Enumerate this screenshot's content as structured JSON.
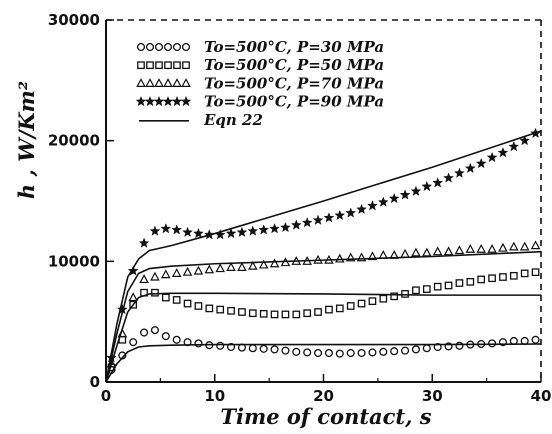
{
  "chart_data": {
    "type": "scatter",
    "title": "",
    "xlabel": "Time of contact, s",
    "ylabel": "h ,  W/Km²",
    "xlim": [
      0,
      40
    ],
    "ylim": [
      0,
      30000
    ],
    "xticks": [
      0,
      10,
      20,
      30,
      40
    ],
    "yticks": [
      0,
      10000,
      20000,
      30000
    ],
    "grid": false,
    "legend_position": "top-left",
    "series": [
      {
        "name": "To=500°C,  P=30 MPa",
        "marker": "circle",
        "x": [
          0.5,
          1.5,
          2.5,
          3.5,
          4.5,
          5.5,
          6.5,
          7.5,
          8.5,
          9.5,
          10.5,
          11.5,
          12.5,
          13.5,
          14.5,
          15.5,
          16.5,
          17.5,
          18.5,
          19.5,
          20.5,
          21.5,
          22.5,
          23.5,
          24.5,
          25.5,
          26.5,
          27.5,
          28.5,
          29.5,
          30.5,
          31.5,
          32.5,
          33.5,
          34.5,
          35.5,
          36.5,
          37.5,
          38.5,
          39.5
        ],
        "y": [
          1000,
          2200,
          3300,
          4100,
          4300,
          3800,
          3500,
          3300,
          3200,
          3050,
          3000,
          2900,
          2850,
          2800,
          2750,
          2700,
          2600,
          2500,
          2450,
          2400,
          2400,
          2350,
          2400,
          2400,
          2450,
          2500,
          2550,
          2600,
          2700,
          2800,
          2900,
          2950,
          3000,
          3100,
          3150,
          3200,
          3300,
          3400,
          3400,
          3500
        ]
      },
      {
        "name": "To=500°C,  P=50 MPa",
        "marker": "square",
        "x": [
          0.5,
          1.5,
          2.5,
          3.5,
          4.5,
          5.5,
          6.5,
          7.5,
          8.5,
          9.5,
          10.5,
          11.5,
          12.5,
          13.5,
          14.5,
          15.5,
          16.5,
          17.5,
          18.5,
          19.5,
          20.5,
          21.5,
          22.5,
          23.5,
          24.5,
          25.5,
          26.5,
          27.5,
          28.5,
          29.5,
          30.5,
          31.5,
          32.5,
          33.5,
          34.5,
          35.5,
          36.5,
          37.5,
          38.5,
          39.5
        ],
        "y": [
          1200,
          3500,
          6400,
          7400,
          7400,
          7000,
          6800,
          6500,
          6300,
          6100,
          6000,
          5900,
          5800,
          5700,
          5650,
          5600,
          5600,
          5600,
          5700,
          5800,
          6000,
          6100,
          6300,
          6500,
          6700,
          6900,
          7100,
          7300,
          7600,
          7700,
          7900,
          8000,
          8200,
          8300,
          8500,
          8600,
          8700,
          8800,
          9000,
          9100
        ]
      },
      {
        "name": "To=500°C,  P=70 MPa",
        "marker": "triangle",
        "x": [
          0.5,
          1.5,
          2.5,
          3.5,
          4.5,
          5.5,
          6.5,
          7.5,
          8.5,
          9.5,
          10.5,
          11.5,
          12.5,
          13.5,
          14.5,
          15.5,
          16.5,
          17.5,
          18.5,
          19.5,
          20.5,
          21.5,
          22.5,
          23.5,
          24.5,
          25.5,
          26.5,
          27.5,
          28.5,
          29.5,
          30.5,
          31.5,
          32.5,
          33.5,
          34.5,
          35.5,
          36.5,
          37.5,
          38.5,
          39.5
        ],
        "y": [
          1500,
          4000,
          7000,
          8500,
          8700,
          8900,
          9000,
          9100,
          9200,
          9300,
          9400,
          9500,
          9500,
          9600,
          9700,
          9800,
          9900,
          10000,
          10000,
          10100,
          10100,
          10200,
          10300,
          10300,
          10400,
          10500,
          10500,
          10600,
          10700,
          10700,
          10800,
          10800,
          10900,
          11000,
          11000,
          11000,
          11100,
          11200,
          11200,
          11300
        ]
      },
      {
        "name": "To=500°C,  P=90 MPa",
        "marker": "star",
        "x": [
          0.5,
          1.5,
          2.5,
          3.5,
          4.5,
          5.5,
          6.5,
          7.5,
          8.5,
          9.5,
          10.5,
          11.5,
          12.5,
          13.5,
          14.5,
          15.5,
          16.5,
          17.5,
          18.5,
          19.5,
          20.5,
          21.5,
          22.5,
          23.5,
          24.5,
          25.5,
          26.5,
          27.5,
          28.5,
          29.5,
          30.5,
          31.5,
          32.5,
          33.5,
          34.5,
          35.5,
          36.5,
          37.5,
          38.5,
          39.5
        ],
        "y": [
          2000,
          6000,
          9200,
          11500,
          12500,
          12700,
          12600,
          12400,
          12300,
          12200,
          12200,
          12300,
          12400,
          12500,
          12600,
          12700,
          12800,
          13000,
          13200,
          13400,
          13600,
          13800,
          14000,
          14300,
          14600,
          14900,
          15200,
          15500,
          15800,
          16200,
          16500,
          16900,
          17300,
          17700,
          18100,
          18600,
          19000,
          19500,
          20000,
          20600
        ]
      },
      {
        "name": "Eqn 22",
        "style": "line",
        "curves": [
          {
            "x": [
              0,
              1,
              2,
              3,
              4,
              6,
              10,
              20,
              30,
              40
            ],
            "y": [
              0,
              1500,
              2500,
              2900,
              3000,
              3050,
              3100,
              3100,
              3100,
              3150
            ]
          },
          {
            "x": [
              0,
              1,
              2,
              3,
              4,
              6,
              10,
              20,
              30,
              40
            ],
            "y": [
              0,
              3000,
              5800,
              7000,
              7300,
              7350,
              7350,
              7300,
              7200,
              7200
            ]
          },
          {
            "x": [
              0,
              1,
              2,
              3,
              4,
              6,
              10,
              20,
              30,
              40
            ],
            "y": [
              0,
              4000,
              7500,
              9000,
              9400,
              9600,
              9800,
              10100,
              10400,
              10800
            ]
          },
          {
            "x": [
              0,
              1,
              2,
              3,
              4,
              6,
              10,
              20,
              30,
              40
            ],
            "y": [
              0,
              4800,
              8700,
              10200,
              10900,
              11300,
              12300,
              15000,
              17800,
              20800
            ]
          }
        ]
      }
    ]
  }
}
